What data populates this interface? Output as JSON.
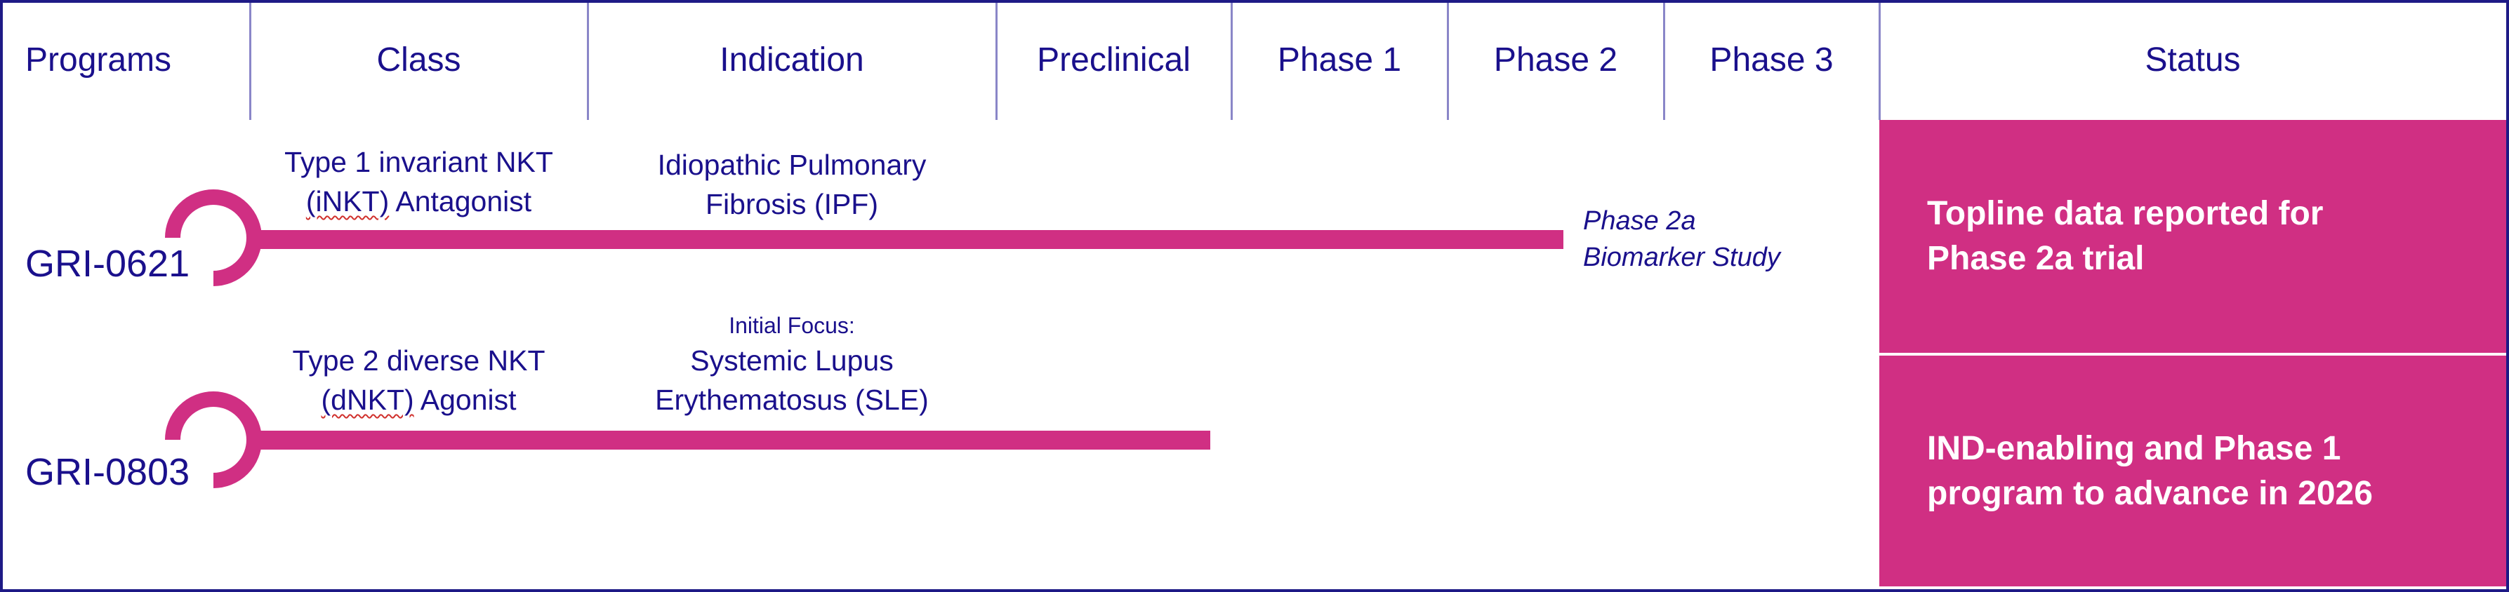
{
  "headers": [
    "Programs",
    "Class",
    "Indication",
    "Preclinical",
    "Phase 1",
    "Phase 2",
    "Phase 3",
    "Status"
  ],
  "colors": {
    "accent": "#d02f83",
    "text": "#1a108c",
    "border": "#1e1a86"
  },
  "programs": [
    {
      "name": "GRI-0621",
      "class_line1": "Type 1 invariant NKT",
      "class_abbr": "(iNKT)",
      "class_rest": " Antagonist",
      "indication_line1": "Idiopathic Pulmonary",
      "indication_line2": "Fibrosis (IPF)",
      "stage_reached": "Phase 2",
      "note_line1": "Phase 2a",
      "note_line2": "Biomarker Study",
      "status_line1": "Topline data reported for",
      "status_line2": "Phase 2a trial"
    },
    {
      "name": "GRI-0803",
      "class_line1": "Type 2 diverse NKT",
      "class_abbr": "(dNKT)",
      "class_rest": " Agonist",
      "indication_prefix": "Initial Focus:",
      "indication_line1": "Systemic Lupus",
      "indication_line2": "Erythematosus (SLE)",
      "stage_reached": "Preclinical",
      "status_line1": "IND-enabling and Phase 1",
      "status_line2": "program to advance in 2026"
    }
  ]
}
